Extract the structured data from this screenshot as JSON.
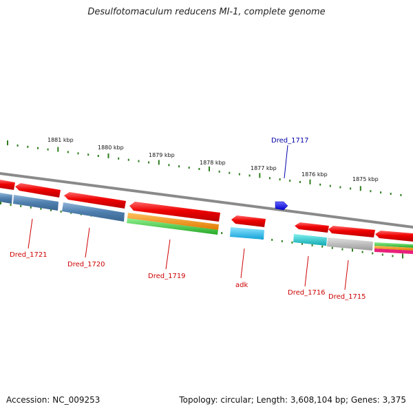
{
  "title": "Desulfotomaculum reducens MI-1, complete genome",
  "footer": {
    "accession": "Accession: NC_009253",
    "stats": "Topology: circular; Length: 3,608,104 bp; Genes: 3,375"
  },
  "colors": {
    "backbone": "#8a8a8a",
    "tick": "#2e7d1e",
    "gene_red": "#ee0000",
    "label_red": "#cc0000",
    "label_blue": "#0000aa",
    "steel_blue": "#4f7fae",
    "orange": "#f08c00",
    "green": "#3cc43c",
    "cyan": "#22b8e8",
    "teal": "#1fc2c8",
    "gray": "#b8b8b8",
    "blue": "#0000ff"
  },
  "kbp_labels": [
    "1881 kbp",
    "1880 kbp",
    "1879 kbp",
    "1878 kbp",
    "1877 kbp",
    "1876 kbp",
    "1875 kbp"
  ],
  "gene_labels": [
    {
      "text": "Dred_1721",
      "color": "red"
    },
    {
      "text": "Dred_1720",
      "color": "red"
    },
    {
      "text": "Dred_1719",
      "color": "red"
    },
    {
      "text": "adk",
      "color": "red"
    },
    {
      "text": "Dred_1716",
      "color": "red"
    },
    {
      "text": "Dred_1715",
      "color": "red"
    },
    {
      "text": "Dred_1717",
      "color": "blue"
    }
  ]
}
